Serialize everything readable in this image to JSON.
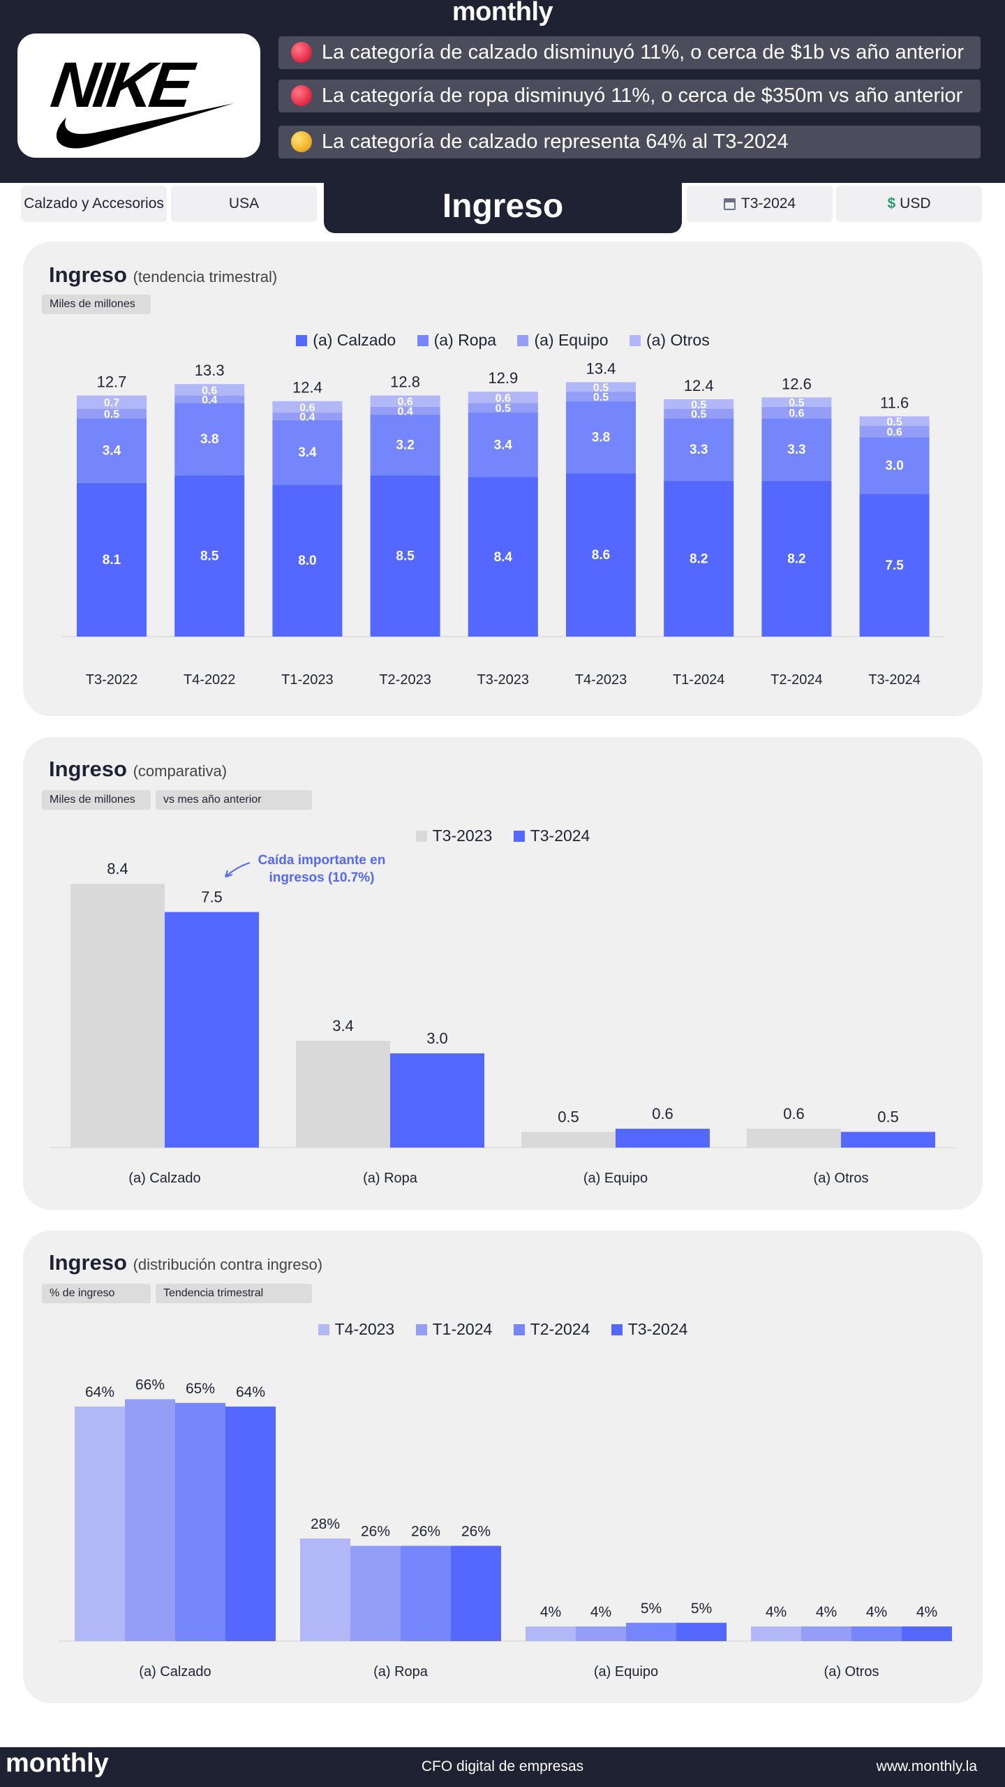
{
  "brand": "monthly",
  "logo_text": "NIKE",
  "insights": [
    {
      "text": "La categoría de calzado disminuyó 11%, o cerca de $1b vs año anterior",
      "color": "#e8314a"
    },
    {
      "text": "La categoría de ropa disminuyó 11%, o cerca de $350m vs año anterior",
      "color": "#e8314a"
    },
    {
      "text": "La categoría de calzado representa 64% al T3-2024",
      "color": "#f0b429"
    }
  ],
  "filters": {
    "category": "Calzado y Accesorios",
    "region": "USA",
    "period": "T3-2024",
    "period_icon": "calendar-icon",
    "currency": "USD",
    "currency_icon": "dollar-icon"
  },
  "page_title": "Ingreso",
  "colors": {
    "calzado": "#5468ff",
    "ropa": "#7585fb",
    "equipo": "#949ef7",
    "otros": "#b1b7f7",
    "prev": "#d9d9d9",
    "annotation": "#5468ff"
  },
  "card1": {
    "title": "Ingreso",
    "subtitle": "(tendencia trimestral)",
    "tag": "Miles de millones"
  },
  "card2": {
    "title": "Ingreso",
    "subtitle": "(comparativa)",
    "tag1": "Miles de millones",
    "tag2": "vs mes año anterior",
    "annotation": "Caída importante en ingresos (10.7%)"
  },
  "card3": {
    "title": "Ingreso",
    "subtitle": "(distribución contra ingreso)",
    "tag1": "% de ingreso",
    "tag2": "Tendencia trimestral"
  },
  "chart_data": [
    {
      "type": "bar",
      "stacked": true,
      "title": "Ingreso (tendencia trimestral)",
      "unit": "Miles de millones",
      "categories": [
        "T3-2022",
        "T4-2022",
        "T1-2023",
        "T2-2023",
        "T3-2023",
        "T4-2023",
        "T1-2024",
        "T2-2024",
        "T3-2024"
      ],
      "series": [
        {
          "name": "(a) Calzado",
          "values": [
            8.1,
            8.5,
            8.0,
            8.5,
            8.4,
            8.6,
            8.2,
            8.2,
            7.5
          ]
        },
        {
          "name": "(a) Ropa",
          "values": [
            3.4,
            3.8,
            3.4,
            3.2,
            3.4,
            3.8,
            3.3,
            3.3,
            3.0
          ]
        },
        {
          "name": "(a) Equipo",
          "values": [
            0.5,
            0.4,
            0.4,
            0.4,
            0.5,
            0.5,
            0.5,
            0.6,
            0.6
          ]
        },
        {
          "name": "(a) Otros",
          "values": [
            0.7,
            0.6,
            0.6,
            0.6,
            0.6,
            0.5,
            0.5,
            0.5,
            0.5
          ]
        }
      ],
      "totals": [
        "12.7",
        "13.3",
        "12.4",
        "12.8",
        "12.9",
        "13.4",
        "12.4",
        "12.6",
        "11.6"
      ],
      "ylim": [
        0,
        14
      ]
    },
    {
      "type": "bar",
      "title": "Ingreso (comparativa)",
      "unit": "Miles de millones",
      "categories": [
        "(a) Calzado",
        "(a) Ropa",
        "(a) Equipo",
        "(a) Otros"
      ],
      "series": [
        {
          "name": "T3-2023",
          "values": [
            8.4,
            3.4,
            0.5,
            0.6
          ]
        },
        {
          "name": "T3-2024",
          "values": [
            7.5,
            3.0,
            0.6,
            0.5
          ]
        }
      ],
      "ylim": [
        0,
        9
      ]
    },
    {
      "type": "bar",
      "title": "Ingreso (distribución contra ingreso)",
      "unit": "% de ingreso",
      "categories": [
        "(a) Calzado",
        "(a) Ropa",
        "(a) Equipo",
        "(a) Otros"
      ],
      "series": [
        {
          "name": "T4-2023",
          "values": [
            64,
            28,
            4,
            4
          ]
        },
        {
          "name": "T1-2024",
          "values": [
            66,
            26,
            4,
            4
          ]
        },
        {
          "name": "T2-2024",
          "values": [
            65,
            26,
            5,
            4
          ]
        },
        {
          "name": "T3-2024",
          "values": [
            64,
            26,
            5,
            4
          ]
        }
      ],
      "ylim": [
        0,
        70
      ]
    }
  ],
  "footer": {
    "brand": "monthly",
    "tagline": "CFO digital de empresas",
    "url": "www.monthly.la"
  }
}
